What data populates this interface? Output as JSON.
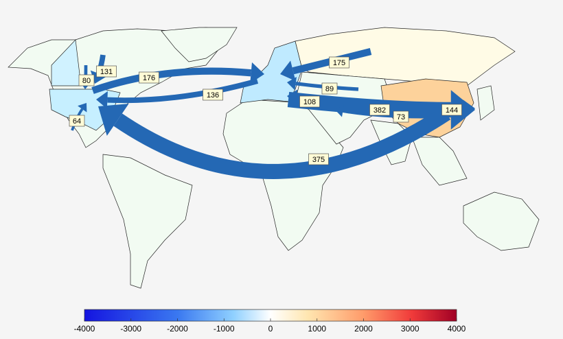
{
  "flows": [
    {
      "value": 131
    },
    {
      "value": 80
    },
    {
      "value": 176
    },
    {
      "value": 136
    },
    {
      "value": 64
    },
    {
      "value": 175
    },
    {
      "value": 89
    },
    {
      "value": 108
    },
    {
      "value": 382
    },
    {
      "value": 73
    },
    {
      "value": 144
    },
    {
      "value": 375
    }
  ],
  "colorbar": {
    "lim": [
      -4000,
      4000
    ],
    "ticks": [
      -4000,
      -3000,
      -2000,
      -1000,
      0,
      1000,
      2000,
      3000,
      4000
    ]
  }
}
